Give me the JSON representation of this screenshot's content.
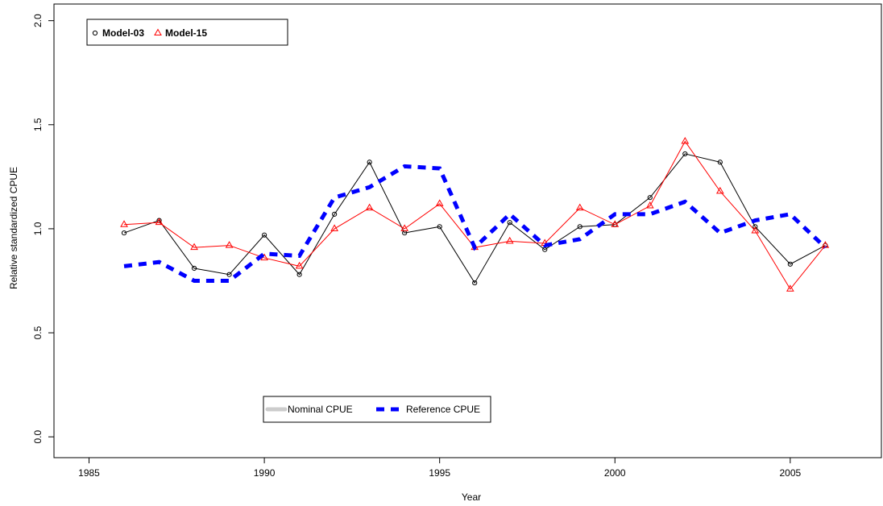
{
  "chart_data": {
    "type": "line",
    "x_label": "Year",
    "y_label": "Relative standardized CPUE",
    "x": [
      1986,
      1987,
      1988,
      1989,
      1990,
      1991,
      1992,
      1993,
      1994,
      1995,
      1996,
      1997,
      1998,
      1999,
      2000,
      2001,
      2002,
      2003,
      2004,
      2005,
      2006
    ],
    "series": [
      {
        "name": "Model-03",
        "color": "#000000",
        "marker": "circle",
        "line_width": 1,
        "dashed": false,
        "values": [
          0.98,
          1.04,
          0.81,
          0.78,
          0.97,
          0.78,
          1.07,
          1.32,
          0.98,
          1.01,
          0.74,
          1.03,
          0.9,
          1.01,
          1.02,
          1.15,
          1.36,
          1.32,
          1.01,
          0.83,
          0.92
        ]
      },
      {
        "name": "Model-15",
        "color": "#ff0000",
        "marker": "triangle",
        "line_width": 1,
        "dashed": false,
        "values": [
          1.02,
          1.03,
          0.91,
          0.92,
          0.86,
          0.82,
          1.0,
          1.1,
          1.0,
          1.12,
          0.91,
          0.94,
          0.93,
          1.1,
          1.02,
          1.11,
          1.42,
          1.18,
          0.99,
          0.71,
          0.92
        ]
      },
      {
        "name": "Reference CPUE",
        "color": "#0000ff",
        "marker": null,
        "line_width": 5,
        "dashed": true,
        "values": [
          0.82,
          0.84,
          0.75,
          0.75,
          0.88,
          0.87,
          1.15,
          1.2,
          1.3,
          1.29,
          0.91,
          1.07,
          0.92,
          0.95,
          1.07,
          1.07,
          1.13,
          0.98,
          1.04,
          1.07,
          0.91
        ]
      }
    ],
    "legend_only": [
      {
        "name": "Nominal CPUE",
        "color": "#cccccc"
      }
    ],
    "xlim": [
      1984,
      2007.6
    ],
    "ylim": [
      -0.1,
      2.08
    ],
    "xticks": [
      1985,
      1990,
      1995,
      2000,
      2005
    ],
    "yticks": [
      {
        "value": 0,
        "label": "0.0"
      },
      0.5,
      {
        "value": 1,
        "label": "1.0"
      },
      1.5,
      {
        "value": 2,
        "label": "2.0"
      }
    ]
  }
}
